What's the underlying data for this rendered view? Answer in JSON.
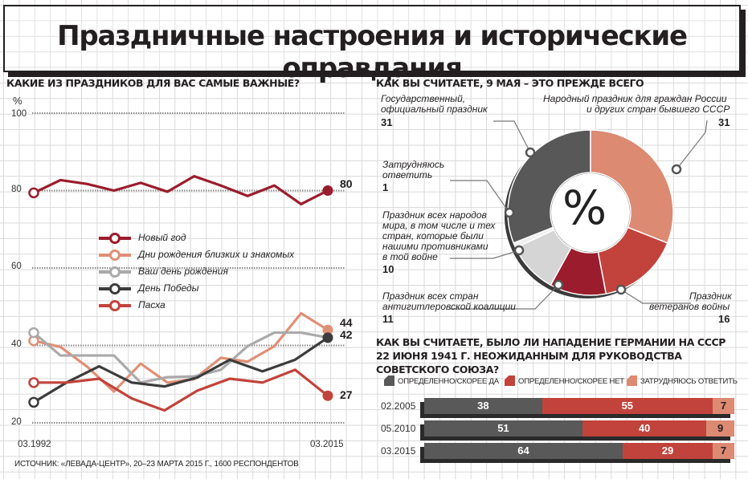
{
  "header": {
    "title": "Праздничные настроения и исторические оправдания"
  },
  "left_chart": {
    "question": "КАКИЕ ИЗ ПРАЗДНИКОВ ДЛЯ ВАС САМЫЕ ВАЖНЫЕ?",
    "unit": "%",
    "y_ticks": [
      "100",
      "80",
      "60",
      "40",
      "20"
    ],
    "x_start": "03.1992",
    "x_end": "03.2015",
    "end_labels": [
      "80",
      "44",
      "42",
      "27"
    ]
  },
  "chart_data": [
    {
      "type": "line",
      "ylabel": "%",
      "ylim": [
        20,
        100
      ],
      "x_labels": [
        "03.1992",
        "03.2015"
      ],
      "series": [
        {
          "name": "Новый год",
          "color": "#9b1c2c",
          "values": [
            79.4,
            82.7,
            81.7,
            80.0,
            82.0,
            79.7,
            83.7,
            81.3,
            78.6,
            81.3,
            76.5,
            80.0
          ]
        },
        {
          "name": "Дни рождения близких и знакомых",
          "color": "#e08f75",
          "values": [
            41.2,
            39.6,
            34.5,
            28.1,
            35.3,
            30.4,
            31.3,
            36.8,
            35.8,
            39.8,
            48.3,
            44.0
          ]
        },
        {
          "name": "Ваш день рождения",
          "color": "#aaaaaa",
          "values": [
            43.3,
            37.4,
            37.4,
            37.4,
            30.4,
            31.8,
            32.0,
            33.7,
            39.8,
            43.3,
            43.3,
            42.0
          ]
        },
        {
          "name": "День Победы",
          "color": "#3c3c3c",
          "values": [
            25.3,
            30.4,
            34.6,
            30.4,
            29.4,
            31.7,
            36.3,
            33.3,
            36.3,
            42.0
          ]
        },
        {
          "name": "Пасха",
          "color": "#c2433b",
          "values": [
            30.4,
            30.4,
            31.4,
            26.3,
            23.2,
            28.3,
            31.4,
            30.4,
            33.7,
            27.0
          ]
        }
      ]
    },
    {
      "type": "pie",
      "title": "КАК ВЫ СЧИТАЕТЕ, 9 МАЯ – ЭТО ПРЕЖДЕ ВСЕГО",
      "center_label": "%",
      "slices": [
        {
          "label": "Государственный, официальный праздник",
          "value": 31,
          "color": "#585858"
        },
        {
          "label": "Народный праздник для граждан России и других стран бывшего СССР",
          "value": 31,
          "color": "#dd8a72"
        },
        {
          "label": "Праздник ветеранов войны",
          "value": 16,
          "color": "#c2433b"
        },
        {
          "label": "Праздник всех стран антигитлеровской коалиции",
          "value": 11,
          "color": "#9b1c2c"
        },
        {
          "label": "Праздник всех народов мира, в том числе и тех стран, которые были нашими противниками в той войне",
          "value": 10,
          "color": "#d5d5d5"
        },
        {
          "label": "Затрудняюсь ответить",
          "value": 1,
          "color": "#efefef"
        }
      ]
    },
    {
      "type": "bar",
      "title": "КАК ВЫ СЧИТАЕТЕ, БЫЛО ЛИ НАПАДЕНИЕ ГЕРМАНИИ НА СССР 22 ИЮНЯ 1941 Г. НЕОЖИДАННЫМ ДЛЯ РУКОВОДСТВА СОВЕТСКОГО СОЮЗА?",
      "stacked": true,
      "categories": [
        "02.2005",
        "05.2010",
        "03.2015"
      ],
      "series": [
        {
          "name": "ОПРЕДЕЛЕННО/СКОРЕЕ ДА",
          "color": "#595959",
          "values": [
            38,
            51,
            64
          ]
        },
        {
          "name": "ОПРЕДЕЛЕННО/СКОРЕЕ НЕТ",
          "color": "#c2433b",
          "values": [
            55,
            40,
            29
          ]
        },
        {
          "name": "ЗАТРУДНЯЮСЬ ОТВЕТИТЬ",
          "color": "#dd8a72",
          "values": [
            7,
            9,
            7
          ]
        }
      ]
    }
  ],
  "pie_labels": {
    "official": {
      "line1": "Государственный,",
      "line2": "официальный праздник",
      "value": "31"
    },
    "folk": {
      "line1": "Народный праздник для граждан России",
      "line2": "и других стран бывшего СССР",
      "value": "31"
    },
    "unsure": {
      "line1": "Затрудняюсь",
      "line2": "ответить",
      "value": "1"
    },
    "all_peoples": {
      "line1": "Праздник всех народов",
      "line2": "мира, в том числе и тех",
      "line3": "стран, которые были",
      "line4": "нашими противниками",
      "line5": "в той войне",
      "value": "10"
    },
    "coalition": {
      "line1": "Праздник всех стран",
      "line2": "антигитлеровской коалиции",
      "value": "11"
    },
    "veterans": {
      "line1": "Праздник",
      "line2": "ветеранов войны",
      "value": "16"
    }
  },
  "footer": {
    "source": "ИСТОЧНИК: «ЛЕВАДА-ЦЕНТР», 20–23 МАРТА 2015 Г., 1600 РЕСПОНДЕНТОВ"
  }
}
